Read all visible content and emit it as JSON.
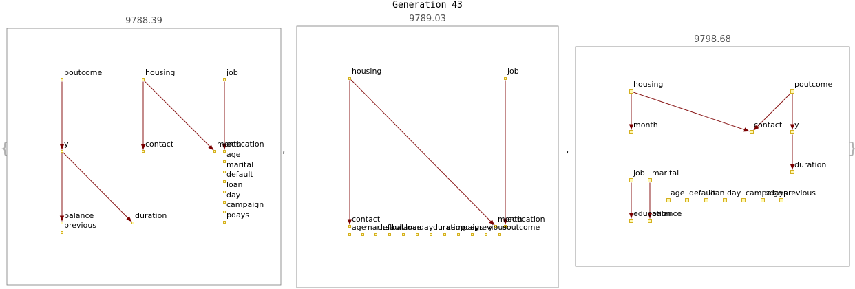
{
  "title": "Generation 43",
  "open_brace": "{",
  "close_brace": "}",
  "separator": ",",
  "panels": [
    {
      "score": "9788.39",
      "nodes": [
        {
          "id": "poutcome",
          "label": "poutcome"
        },
        {
          "id": "housing",
          "label": "housing"
        },
        {
          "id": "job",
          "label": "job"
        },
        {
          "id": "y",
          "label": "y"
        },
        {
          "id": "contact",
          "label": "contact"
        },
        {
          "id": "month",
          "label": "month"
        },
        {
          "id": "education",
          "label": "education"
        },
        {
          "id": "age",
          "label": "age"
        },
        {
          "id": "marital",
          "label": "marital"
        },
        {
          "id": "default",
          "label": "default"
        },
        {
          "id": "loan",
          "label": "loan"
        },
        {
          "id": "day",
          "label": "day"
        },
        {
          "id": "campaign",
          "label": "campaign"
        },
        {
          "id": "pdays",
          "label": "pdays"
        },
        {
          "id": "balance",
          "label": "balance"
        },
        {
          "id": "duration",
          "label": "duration"
        },
        {
          "id": "previous",
          "label": "previous"
        }
      ],
      "edges": [
        {
          "from": "poutcome",
          "to": "y"
        },
        {
          "from": "housing",
          "to": "contact"
        },
        {
          "from": "housing",
          "to": "month"
        },
        {
          "from": "job",
          "to": "education"
        },
        {
          "from": "y",
          "to": "balance"
        },
        {
          "from": "y",
          "to": "duration"
        }
      ]
    },
    {
      "score": "9789.03",
      "nodes": [
        {
          "id": "housing",
          "label": "housing"
        },
        {
          "id": "job",
          "label": "job"
        },
        {
          "id": "contact",
          "label": "contact"
        },
        {
          "id": "month",
          "label": "month"
        },
        {
          "id": "education",
          "label": "education"
        },
        {
          "id": "age",
          "label": "age"
        },
        {
          "id": "marital",
          "label": "marital"
        },
        {
          "id": "default",
          "label": "default"
        },
        {
          "id": "balance",
          "label": "balance"
        },
        {
          "id": "loan",
          "label": "loan"
        },
        {
          "id": "day",
          "label": "day"
        },
        {
          "id": "duration",
          "label": "duration"
        },
        {
          "id": "campaign",
          "label": "campaign"
        },
        {
          "id": "pdays",
          "label": "pdays"
        },
        {
          "id": "previous",
          "label": "previous"
        },
        {
          "id": "y",
          "label": "y"
        },
        {
          "id": "poutcome",
          "label": "poutcome"
        }
      ],
      "edges": [
        {
          "from": "housing",
          "to": "contact"
        },
        {
          "from": "housing",
          "to": "month"
        },
        {
          "from": "job",
          "to": "education"
        }
      ]
    },
    {
      "score": "9798.68",
      "nodes": [
        {
          "id": "housing",
          "label": "housing"
        },
        {
          "id": "poutcome",
          "label": "poutcome"
        },
        {
          "id": "month",
          "label": "month"
        },
        {
          "id": "contact",
          "label": "contact"
        },
        {
          "id": "y",
          "label": "y"
        },
        {
          "id": "duration",
          "label": "duration"
        },
        {
          "id": "job",
          "label": "job"
        },
        {
          "id": "marital",
          "label": "marital"
        },
        {
          "id": "age",
          "label": "age"
        },
        {
          "id": "default",
          "label": "default"
        },
        {
          "id": "loan",
          "label": "loan"
        },
        {
          "id": "day",
          "label": "day"
        },
        {
          "id": "campaign",
          "label": "campaign"
        },
        {
          "id": "pdays",
          "label": "pdays"
        },
        {
          "id": "previous",
          "label": "previous"
        },
        {
          "id": "education",
          "label": "education"
        },
        {
          "id": "balance",
          "label": "balance"
        }
      ],
      "edges": [
        {
          "from": "housing",
          "to": "month"
        },
        {
          "from": "housing",
          "to": "contact"
        },
        {
          "from": "poutcome",
          "to": "contact"
        },
        {
          "from": "poutcome",
          "to": "y"
        },
        {
          "from": "y",
          "to": "duration"
        },
        {
          "from": "job",
          "to": "education"
        },
        {
          "from": "marital",
          "to": "balance"
        }
      ]
    }
  ]
}
